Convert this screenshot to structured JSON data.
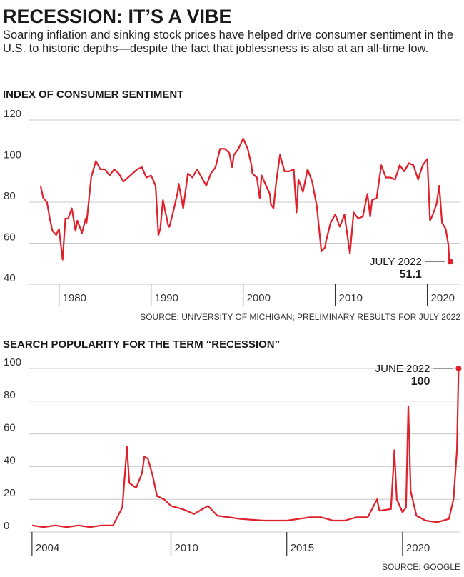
{
  "header": {
    "title": "RECESSION: IT’S A VIBE",
    "subtitle": "Soaring inflation and sinking stock prices have helped drive consumer sentiment in the U.S. to historic depths—despite the fact that joblessness is also at an all-time low."
  },
  "chart_data": [
    {
      "type": "line",
      "title": "INDEX OF CONSUMER SENTIMENT",
      "color": "#e0202a",
      "x": [
        1978.0,
        1978.3,
        1978.7,
        1979.0,
        1979.3,
        1979.7,
        1980.0,
        1980.4,
        1980.7,
        1981.0,
        1981.4,
        1981.8,
        1982.0,
        1982.5,
        1982.9,
        1983.0,
        1983.5,
        1984.0,
        1984.5,
        1985.0,
        1985.5,
        1986.0,
        1986.5,
        1987.0,
        1987.5,
        1988.0,
        1988.5,
        1989.0,
        1989.5,
        1990.0,
        1990.5,
        1990.8,
        1991.0,
        1991.3,
        1991.9,
        1992.0,
        1992.5,
        1992.9,
        1993.0,
        1993.5,
        1994.0,
        1994.5,
        1995.0,
        1995.5,
        1996.0,
        1996.5,
        1997.0,
        1997.5,
        1998.0,
        1998.5,
        1998.8,
        1999.0,
        1999.5,
        2000.0,
        2000.5,
        2000.9,
        2001.0,
        2001.5,
        2001.8,
        2002.0,
        2002.5,
        2002.9,
        2003.0,
        2003.3,
        2003.6,
        2004.0,
        2004.5,
        2005.0,
        2005.5,
        2005.8,
        2006.0,
        2006.5,
        2007.0,
        2007.5,
        2008.0,
        2008.5,
        2008.9,
        2009.0,
        2009.5,
        2010.0,
        2010.5,
        2011.0,
        2011.6,
        2012.0,
        2012.5,
        2013.0,
        2013.5,
        2013.8,
        2014.0,
        2014.5,
        2015.0,
        2015.5,
        2016.0,
        2016.5,
        2017.0,
        2017.5,
        2018.0,
        2018.5,
        2019.0,
        2019.5,
        2020.0,
        2020.3,
        2020.6,
        2021.0,
        2021.3,
        2021.6,
        2022.0,
        2022.3,
        2022.4,
        2022.5
      ],
      "values": [
        88,
        82,
        80,
        72,
        66,
        64,
        67,
        52,
        72,
        72,
        77,
        66,
        71,
        65,
        72,
        70,
        92,
        100,
        96,
        96,
        93,
        96,
        94,
        90,
        92,
        94,
        96,
        97,
        92,
        93,
        88,
        64,
        67,
        81,
        68,
        68,
        77,
        85,
        89,
        77,
        94,
        92,
        96,
        92,
        88,
        94,
        97,
        106,
        106,
        104,
        97,
        103,
        106,
        111,
        106,
        98,
        94,
        92,
        82,
        93,
        88,
        84,
        79,
        77,
        90,
        103,
        95,
        95,
        96,
        75,
        91,
        85,
        96,
        90,
        78,
        56,
        58,
        61,
        70,
        74,
        68,
        74,
        55,
        75,
        72,
        73,
        84,
        73,
        81,
        82,
        98,
        92,
        92,
        91,
        98,
        95,
        99,
        98,
        91,
        98,
        101,
        71,
        74,
        79,
        88,
        70,
        67,
        59,
        50,
        51.1
      ],
      "xlim": [
        1976.7,
        2023.6
      ],
      "ylim": [
        40,
        120
      ],
      "xticks": [
        1980,
        1990,
        2000,
        2010,
        2020
      ],
      "yticks": [
        40,
        60,
        80,
        100,
        120
      ],
      "grid": true,
      "annotation": {
        "text": "JULY 2022",
        "value": 51.1
      },
      "source": "SOURCE: UNIVERSITY OF MICHIGAN; PRELIMINARY RESULTS FOR JULY 2022"
    },
    {
      "type": "line",
      "title": "SEARCH POPULARITY FOR THE TERM “RECESSION”",
      "color": "#e0202a",
      "x": [
        2004.0,
        2004.5,
        2005.0,
        2005.5,
        2006.0,
        2006.5,
        2007.0,
        2007.5,
        2007.9,
        2008.1,
        2008.2,
        2008.5,
        2008.75,
        2008.85,
        2009.0,
        2009.2,
        2009.4,
        2009.7,
        2010.0,
        2010.5,
        2011.0,
        2011.6,
        2012.0,
        2012.5,
        2013.0,
        2014.0,
        2015.0,
        2015.5,
        2016.0,
        2016.5,
        2017.0,
        2017.5,
        2018.0,
        2018.5,
        2018.9,
        2019.0,
        2019.5,
        2019.65,
        2019.75,
        2020.0,
        2020.15,
        2020.25,
        2020.35,
        2020.6,
        2021.0,
        2021.5,
        2022.0,
        2022.2,
        2022.35,
        2022.42
      ],
      "values": [
        4,
        3,
        4,
        3,
        4,
        3,
        4,
        4,
        15,
        52,
        30,
        27,
        36,
        46,
        45,
        35,
        22,
        20,
        16,
        14,
        11,
        16,
        10,
        9,
        8,
        7,
        7,
        8,
        9,
        9,
        7,
        7,
        9,
        9,
        20,
        13,
        14,
        50,
        20,
        12,
        15,
        77,
        25,
        10,
        7,
        6,
        8,
        20,
        50,
        100
      ],
      "xlim": [
        2003.85,
        2022.5
      ],
      "ylim": [
        0,
        100
      ],
      "xticks": [
        2004,
        2010,
        2015,
        2020
      ],
      "yticks": [
        0,
        20,
        40,
        60,
        80,
        100
      ],
      "grid": true,
      "annotation": {
        "text": "JUNE 2022",
        "value": 100
      },
      "source": "SOURCE: GOOGLE"
    }
  ]
}
